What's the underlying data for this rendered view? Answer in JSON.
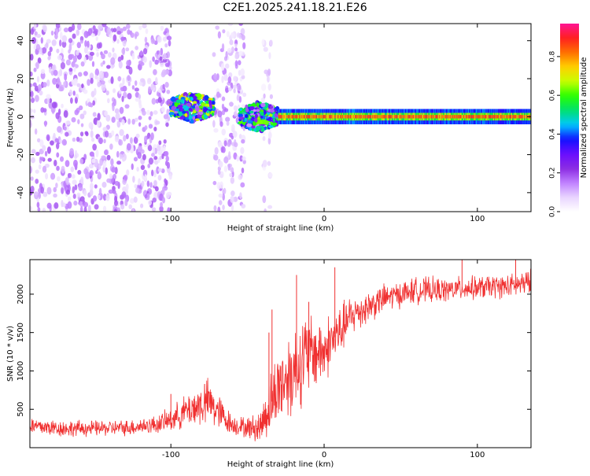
{
  "figure_title": "C2E1.2025.241.18.21.E26",
  "palette": {
    "axes": "#000000",
    "snr_line": "#f03030",
    "colormap": [
      "#ffffff",
      "#e8d4ff",
      "#c080ff",
      "#8a2be2",
      "#6a0dff",
      "#1010ff",
      "#00c8ff",
      "#00e070",
      "#28ff00",
      "#c8ff00",
      "#ffd000",
      "#ff7000",
      "#ff2020",
      "#ff1493"
    ]
  },
  "chart_data": [
    {
      "type": "heatmap",
      "name": "spectrogram",
      "title": "",
      "xlabel": "Height of straight line (km)",
      "ylabel": "Frequency (Hz)",
      "xlim": [
        -192,
        135
      ],
      "ylim": [
        -50,
        49
      ],
      "xticks": [
        -100,
        0,
        100
      ],
      "yticks": [
        -40,
        -20,
        0,
        20,
        40
      ],
      "colorbar": {
        "label": "Normalized spectral amplitude",
        "range": [
          0,
          0.97
        ],
        "ticks": [
          0.0,
          0.2,
          0.4,
          0.6,
          0.8
        ]
      },
      "regions": [
        {
          "label": "broadband noise",
          "x": [
            -192,
            -100
          ],
          "amplitude": 0.15
        },
        {
          "label": "noise band",
          "x": [
            -72,
            -52
          ],
          "amplitude": 0.13
        },
        {
          "label": "noise band",
          "x": [
            -40,
            -34
          ],
          "amplitude": 0.08
        },
        {
          "label": "signal cluster",
          "x": [
            -100,
            -72
          ],
          "freq_center": 5,
          "amplitude": 0.5
        },
        {
          "label": "signal cluster",
          "x": [
            -55,
            -30
          ],
          "freq_center": 0,
          "amplitude": 0.45
        },
        {
          "label": "carrier line",
          "x": [
            -30,
            135
          ],
          "freq_center": 0,
          "amplitude": 0.9
        }
      ]
    },
    {
      "type": "line",
      "name": "snr",
      "title": "",
      "xlabel": "Height of straight line (km)",
      "ylabel": "SNR (10 * v/v)",
      "xlim": [
        -192,
        135
      ],
      "ylim": [
        0,
        2450
      ],
      "xticks": [
        -100,
        0,
        100
      ],
      "yticks": [
        500,
        1000,
        1500,
        2000
      ],
      "series": [
        {
          "name": "SNR",
          "color": "#f03030",
          "x": [
            -192,
            -170,
            -150,
            -130,
            -110,
            -100,
            -90,
            -80,
            -75,
            -70,
            -60,
            -50,
            -42,
            -38,
            -34,
            -30,
            -25,
            -20,
            -15,
            -10,
            -5,
            0,
            5,
            10,
            15,
            20,
            30,
            40,
            50,
            60,
            70,
            80,
            90,
            100,
            110,
            120,
            135
          ],
          "values": [
            280,
            250,
            250,
            260,
            300,
            360,
            480,
            560,
            600,
            480,
            300,
            260,
            260,
            450,
            600,
            800,
            900,
            1000,
            1150,
            1200,
            1250,
            1250,
            1400,
            1500,
            1650,
            1750,
            1850,
            1950,
            2000,
            2050,
            2050,
            2050,
            2080,
            2080,
            2100,
            2100,
            2150
          ],
          "noise_amplitude": [
            140,
            130,
            120,
            120,
            140,
            180,
            250,
            350,
            350,
            300,
            150,
            160,
            250,
            400,
            500,
            600,
            650,
            700,
            700,
            650,
            550,
            500,
            450,
            400,
            350,
            300,
            250,
            220,
            200,
            200,
            200,
            180,
            180,
            180,
            180,
            180,
            200
          ],
          "spikes": [
            {
              "x": -100,
              "value": 700
            },
            {
              "x": -78,
              "value": 830
            },
            {
              "x": -36,
              "value": 1500
            },
            {
              "x": -34,
              "value": 1800
            },
            {
              "x": -18,
              "value": 2250
            },
            {
              "x": -10,
              "value": 1900
            },
            {
              "x": 7,
              "value": 2350
            },
            {
              "x": 90,
              "value": 2450
            },
            {
              "x": 125,
              "value": 2450
            }
          ]
        }
      ]
    }
  ]
}
